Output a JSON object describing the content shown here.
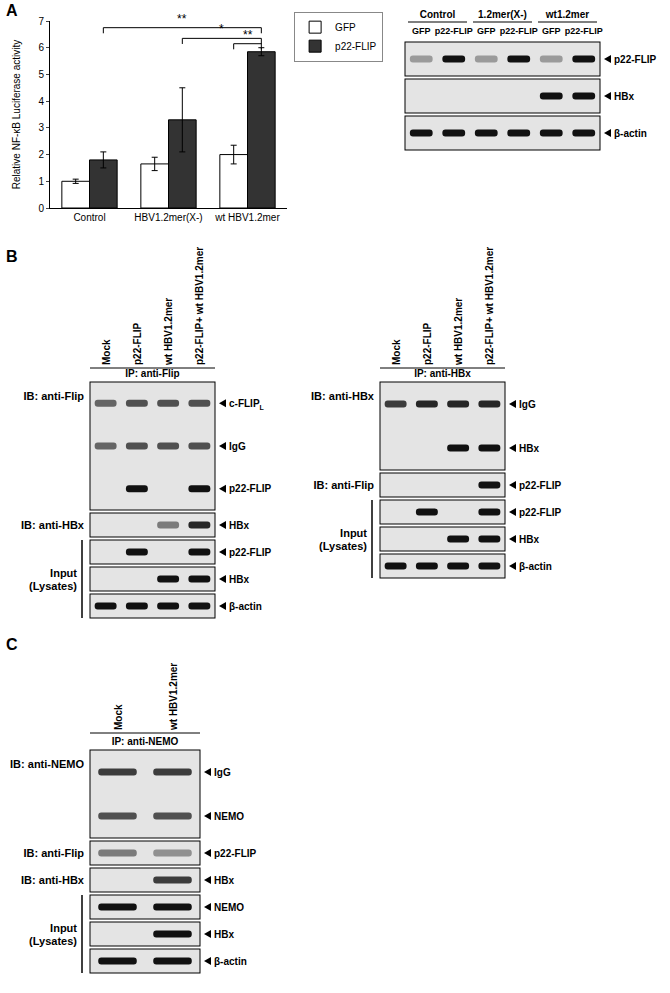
{
  "chart_data": {
    "type": "bar",
    "y_label": "Relative NF-κB Luciferase activity",
    "categories": [
      "Control",
      "HBV1.2mer(X-)",
      "wt HBV1.2mer"
    ],
    "series": [
      {
        "name": "GFP",
        "color": "#ffffff",
        "values": [
          1.0,
          1.65,
          2.0
        ],
        "errors": [
          0.08,
          0.25,
          0.35
        ]
      },
      {
        "name": "p22-FLIP",
        "color": "#333333",
        "values": [
          1.8,
          3.3,
          5.85
        ],
        "errors": [
          0.3,
          1.2,
          0.15
        ]
      }
    ],
    "ylim": [
      0,
      7
    ],
    "yticks": [
      0,
      1,
      2,
      3,
      4,
      5,
      6,
      7
    ],
    "legend": "right",
    "significance": [
      {
        "text": "**",
        "from": "Control",
        "from_series": "p22-FLIP",
        "to": "wt HBV1.2mer",
        "to_series": "p22-FLIP",
        "y": 6.75
      },
      {
        "text": "*",
        "from": "HBV1.2mer(X-)",
        "from_series": "p22-FLIP",
        "to": "wt HBV1.2mer",
        "to_series": "p22-FLIP",
        "y": 6.35
      },
      {
        "text": "**",
        "from": "wt HBV1.2mer",
        "from_series": "GFP",
        "to": "wt HBV1.2mer",
        "to_series": "p22-FLIP",
        "y": 6.15
      }
    ]
  },
  "panels": [
    {
      "label": "A",
      "blots": [
        {
          "groups": [
            {
              "label": "Control",
              "lanes": 2
            },
            {
              "label": "1.2mer(X-)",
              "lanes": 2
            },
            {
              "label": "wt1.2mer",
              "lanes": 2
            }
          ],
          "lanes": [
            "GFP",
            "p22-FLIP",
            "GFP",
            "p22-FLIP",
            "GFP",
            "p22-FLIP"
          ],
          "rows": [
            {
              "bands": [
                {
                  "label": "p22-FLIP",
                  "signal": [
                    0.35,
                    1,
                    0.35,
                    1,
                    0.35,
                    1
                  ]
                }
              ]
            },
            {
              "bands": [
                {
                  "label": "HBx",
                  "signal": [
                    0,
                    0,
                    0,
                    0,
                    1,
                    1
                  ]
                }
              ]
            },
            {
              "bands": [
                {
                  "label": "β-actin",
                  "signal": [
                    1,
                    1,
                    1,
                    1,
                    1,
                    1
                  ]
                }
              ]
            }
          ]
        }
      ]
    },
    {
      "label": "B",
      "blots": [
        {
          "ip": "IP: anti-Flip",
          "lanes": [
            "Mock",
            "p22-FLIP",
            "wt HBV1.2mer",
            "p22-FLIP+ wt HBV1.2mer"
          ],
          "input_label": [
            "Input",
            "(Lysates)"
          ],
          "rows": [
            {
              "ib": "IB: anti-Flip",
              "bands": [
                {
                  "label": "c-FLIP",
                  "sub": "L",
                  "signal": [
                    0.6,
                    0.7,
                    0.7,
                    0.7
                  ]
                },
                {
                  "label": "IgG",
                  "signal": [
                    0.6,
                    0.7,
                    0.7,
                    0.7
                  ]
                },
                {
                  "label": "p22-FLIP",
                  "signal": [
                    0,
                    1,
                    0,
                    1
                  ]
                }
              ]
            },
            {
              "ib": "IB: anti-HBx",
              "bands": [
                {
                  "label": "HBx",
                  "signal": [
                    0,
                    0,
                    0.5,
                    0.9
                  ]
                }
              ]
            },
            {
              "input": true,
              "bands": [
                {
                  "label": "p22-FLIP",
                  "signal": [
                    0,
                    1,
                    0,
                    1
                  ]
                }
              ]
            },
            {
              "input": true,
              "bands": [
                {
                  "label": "HBx",
                  "signal": [
                    0,
                    0,
                    1,
                    1
                  ]
                }
              ]
            },
            {
              "input": true,
              "bands": [
                {
                  "label": "β-actin",
                  "signal": [
                    1,
                    1,
                    1,
                    1
                  ]
                }
              ]
            }
          ]
        },
        {
          "ip": "IP: anti-HBx",
          "lanes": [
            "Mock",
            "p22-FLIP",
            "wt HBV1.2mer",
            "p22-FLIP+ wt HBV1.2mer"
          ],
          "input_label": [
            "Input",
            "(Lysates)"
          ],
          "rows": [
            {
              "ib": "IB: anti-HBx",
              "bands": [
                {
                  "label": "IgG",
                  "signal": [
                    0.8,
                    0.9,
                    0.9,
                    0.9
                  ]
                },
                {
                  "label": "HBx",
                  "signal": [
                    0,
                    0,
                    1,
                    1
                  ]
                }
              ]
            },
            {
              "ib": "IB: anti-Flip",
              "bands": [
                {
                  "label": "p22-FLIP",
                  "signal": [
                    0,
                    0,
                    0,
                    1
                  ]
                }
              ]
            },
            {
              "input": true,
              "bands": [
                {
                  "label": "p22-FLIP",
                  "signal": [
                    0,
                    1,
                    0,
                    1
                  ]
                }
              ]
            },
            {
              "input": true,
              "bands": [
                {
                  "label": "HBx",
                  "signal": [
                    0,
                    0,
                    1,
                    1
                  ]
                }
              ]
            },
            {
              "input": true,
              "bands": [
                {
                  "label": "β-actin",
                  "signal": [
                    1,
                    1,
                    1,
                    1
                  ]
                }
              ]
            }
          ]
        }
      ]
    },
    {
      "label": "C",
      "blots": [
        {
          "ip": "IP: anti-NEMO",
          "lanes": [
            "Mock",
            "wt HBV1.2mer"
          ],
          "input_label": [
            "Input",
            "(Lysates)"
          ],
          "rows": [
            {
              "ib": "IB: anti-NEMO",
              "bands": [
                {
                  "label": "IgG",
                  "signal": [
                    0.8,
                    0.8
                  ]
                },
                {
                  "label": "NEMO",
                  "signal": [
                    0.7,
                    0.7
                  ]
                }
              ]
            },
            {
              "ib": "IB: anti-Flip",
              "bands": [
                {
                  "label": "p22-FLIP",
                  "signal": [
                    0.5,
                    0.4
                  ]
                }
              ]
            },
            {
              "ib": "IB: anti-HBx",
              "bands": [
                {
                  "label": "HBx",
                  "signal": [
                    0,
                    0.8
                  ]
                }
              ]
            },
            {
              "input": true,
              "bands": [
                {
                  "label": "NEMO",
                  "signal": [
                    1,
                    1
                  ]
                }
              ]
            },
            {
              "input": true,
              "bands": [
                {
                  "label": "HBx",
                  "signal": [
                    0,
                    1
                  ]
                }
              ]
            },
            {
              "input": true,
              "bands": [
                {
                  "label": "β-actin",
                  "signal": [
                    1,
                    1
                  ]
                }
              ]
            }
          ]
        }
      ]
    }
  ]
}
